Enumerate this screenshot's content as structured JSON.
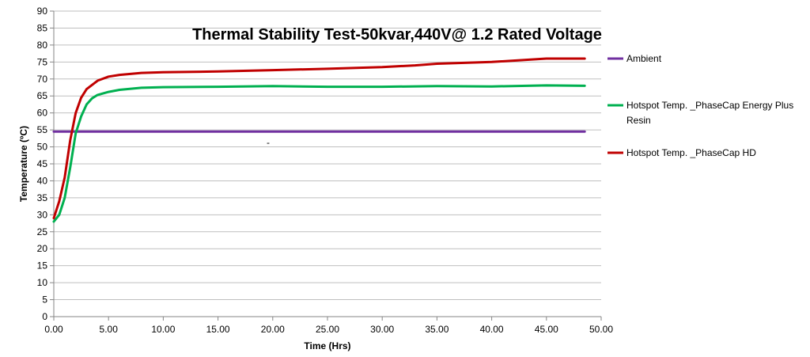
{
  "chart_data": {
    "type": "line",
    "title": "Thermal Stability Test-50kvar,440V@ 1.2 Rated Voltage",
    "xlabel": "Time (Hrs)",
    "ylabel": "Temperature (ºC)",
    "xlim": [
      0,
      50
    ],
    "ylim": [
      0,
      90
    ],
    "xticks": [
      0,
      5,
      10,
      15,
      20,
      25,
      30,
      35,
      40,
      45,
      50
    ],
    "xtick_labels": [
      "0.00",
      "5.00",
      "10.00",
      "15.00",
      "20.00",
      "25.00",
      "30.00",
      "35.00",
      "40.00",
      "45.00",
      "50.00"
    ],
    "yticks": [
      0,
      5,
      10,
      15,
      20,
      25,
      30,
      35,
      40,
      45,
      50,
      55,
      60,
      65,
      70,
      75,
      80,
      85,
      90
    ],
    "grid": "horizontal",
    "legend_position": "right",
    "series": [
      {
        "name": "Ambient",
        "color": "#7030A0",
        "x": [
          0,
          5,
          10,
          15,
          20,
          25,
          30,
          35,
          40,
          45,
          48.5
        ],
        "y": [
          54.5,
          54.5,
          54.5,
          54.5,
          54.5,
          54.5,
          54.5,
          54.5,
          54.5,
          54.5,
          54.5
        ]
      },
      {
        "name": "Hotspot Temp. _PhaseCap Energy Plus Resin",
        "color": "#00B050",
        "x": [
          0,
          0.5,
          1,
          1.5,
          2,
          2.5,
          3,
          3.5,
          4,
          5,
          6,
          8,
          10,
          15,
          20,
          25,
          30,
          35,
          40,
          45,
          48.5
        ],
        "y": [
          28,
          30,
          35,
          44,
          54,
          59,
          62.5,
          64.3,
          65.3,
          66.2,
          66.8,
          67.4,
          67.6,
          67.7,
          67.9,
          67.7,
          67.7,
          67.9,
          67.8,
          68.1,
          68
        ]
      },
      {
        "name": "Hotspot Temp. _PhaseCap HD",
        "color": "#C00000",
        "x": [
          0,
          0.5,
          1,
          1.5,
          2,
          2.5,
          3,
          4,
          5,
          6,
          8,
          10,
          15,
          20,
          25,
          30,
          33,
          35,
          40,
          45,
          48.5
        ],
        "y": [
          29,
          34,
          41,
          52,
          60,
          64.5,
          67,
          69.5,
          70.7,
          71.2,
          71.8,
          72,
          72.2,
          72.6,
          73,
          73.5,
          74,
          74.5,
          75,
          76,
          76
        ]
      }
    ],
    "annotations": [
      "-"
    ]
  }
}
